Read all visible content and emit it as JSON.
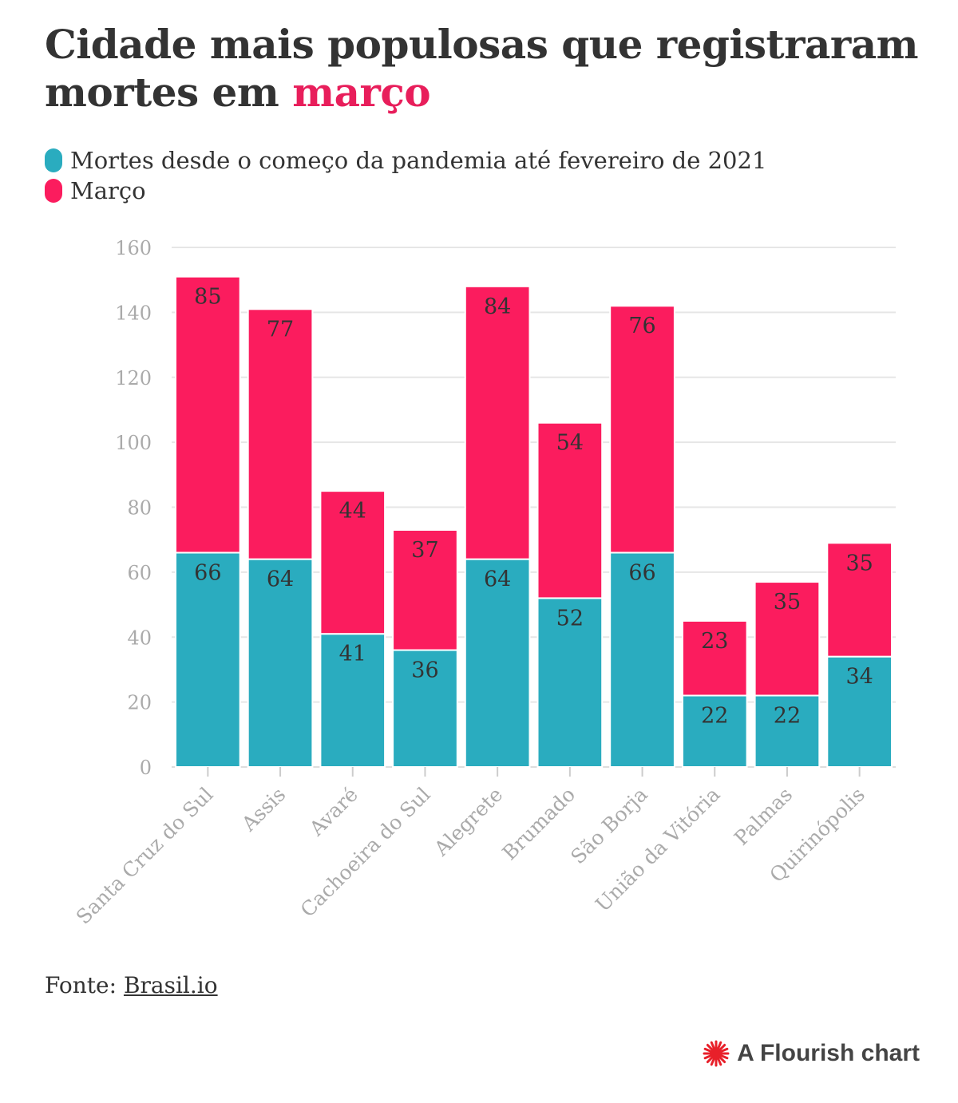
{
  "title": {
    "text_before": "Cidade mais populosas que registraram mortes em ",
    "highlight": "março"
  },
  "legend": [
    {
      "label": "Mortes desde o começo da pandemia até fevereiro de 2021",
      "color": "#2aacbf"
    },
    {
      "label": "Março",
      "color": "#fb1c5e"
    }
  ],
  "source": {
    "prefix": "Fonte: ",
    "link_text": "Brasil.io"
  },
  "credit": {
    "text": "A Flourish chart",
    "icon": "flourish-logo-icon",
    "icon_color": "#e8202a"
  },
  "chart_data": {
    "type": "bar",
    "stacked": true,
    "categories": [
      "Santa Cruz do Sul",
      "Assis",
      "Avaré",
      "Cachoeira do Sul",
      "Alegrete",
      "Brumado",
      "São Borja",
      "União da Vitória",
      "Palmas",
      "Quirinópolis"
    ],
    "series": [
      {
        "name": "Mortes desde o começo da pandemia até fevereiro de 2021",
        "color": "#2aacbf",
        "values": [
          66,
          64,
          41,
          36,
          64,
          52,
          66,
          22,
          22,
          34
        ]
      },
      {
        "name": "Março",
        "color": "#fb1c5e",
        "values": [
          85,
          77,
          44,
          37,
          84,
          54,
          76,
          23,
          35,
          35
        ]
      }
    ],
    "ylim": [
      0,
      160
    ],
    "yticks": [
      0,
      20,
      40,
      60,
      80,
      100,
      120,
      140,
      160
    ],
    "grid": true,
    "data_labels": true,
    "legend_position": "top-left"
  }
}
